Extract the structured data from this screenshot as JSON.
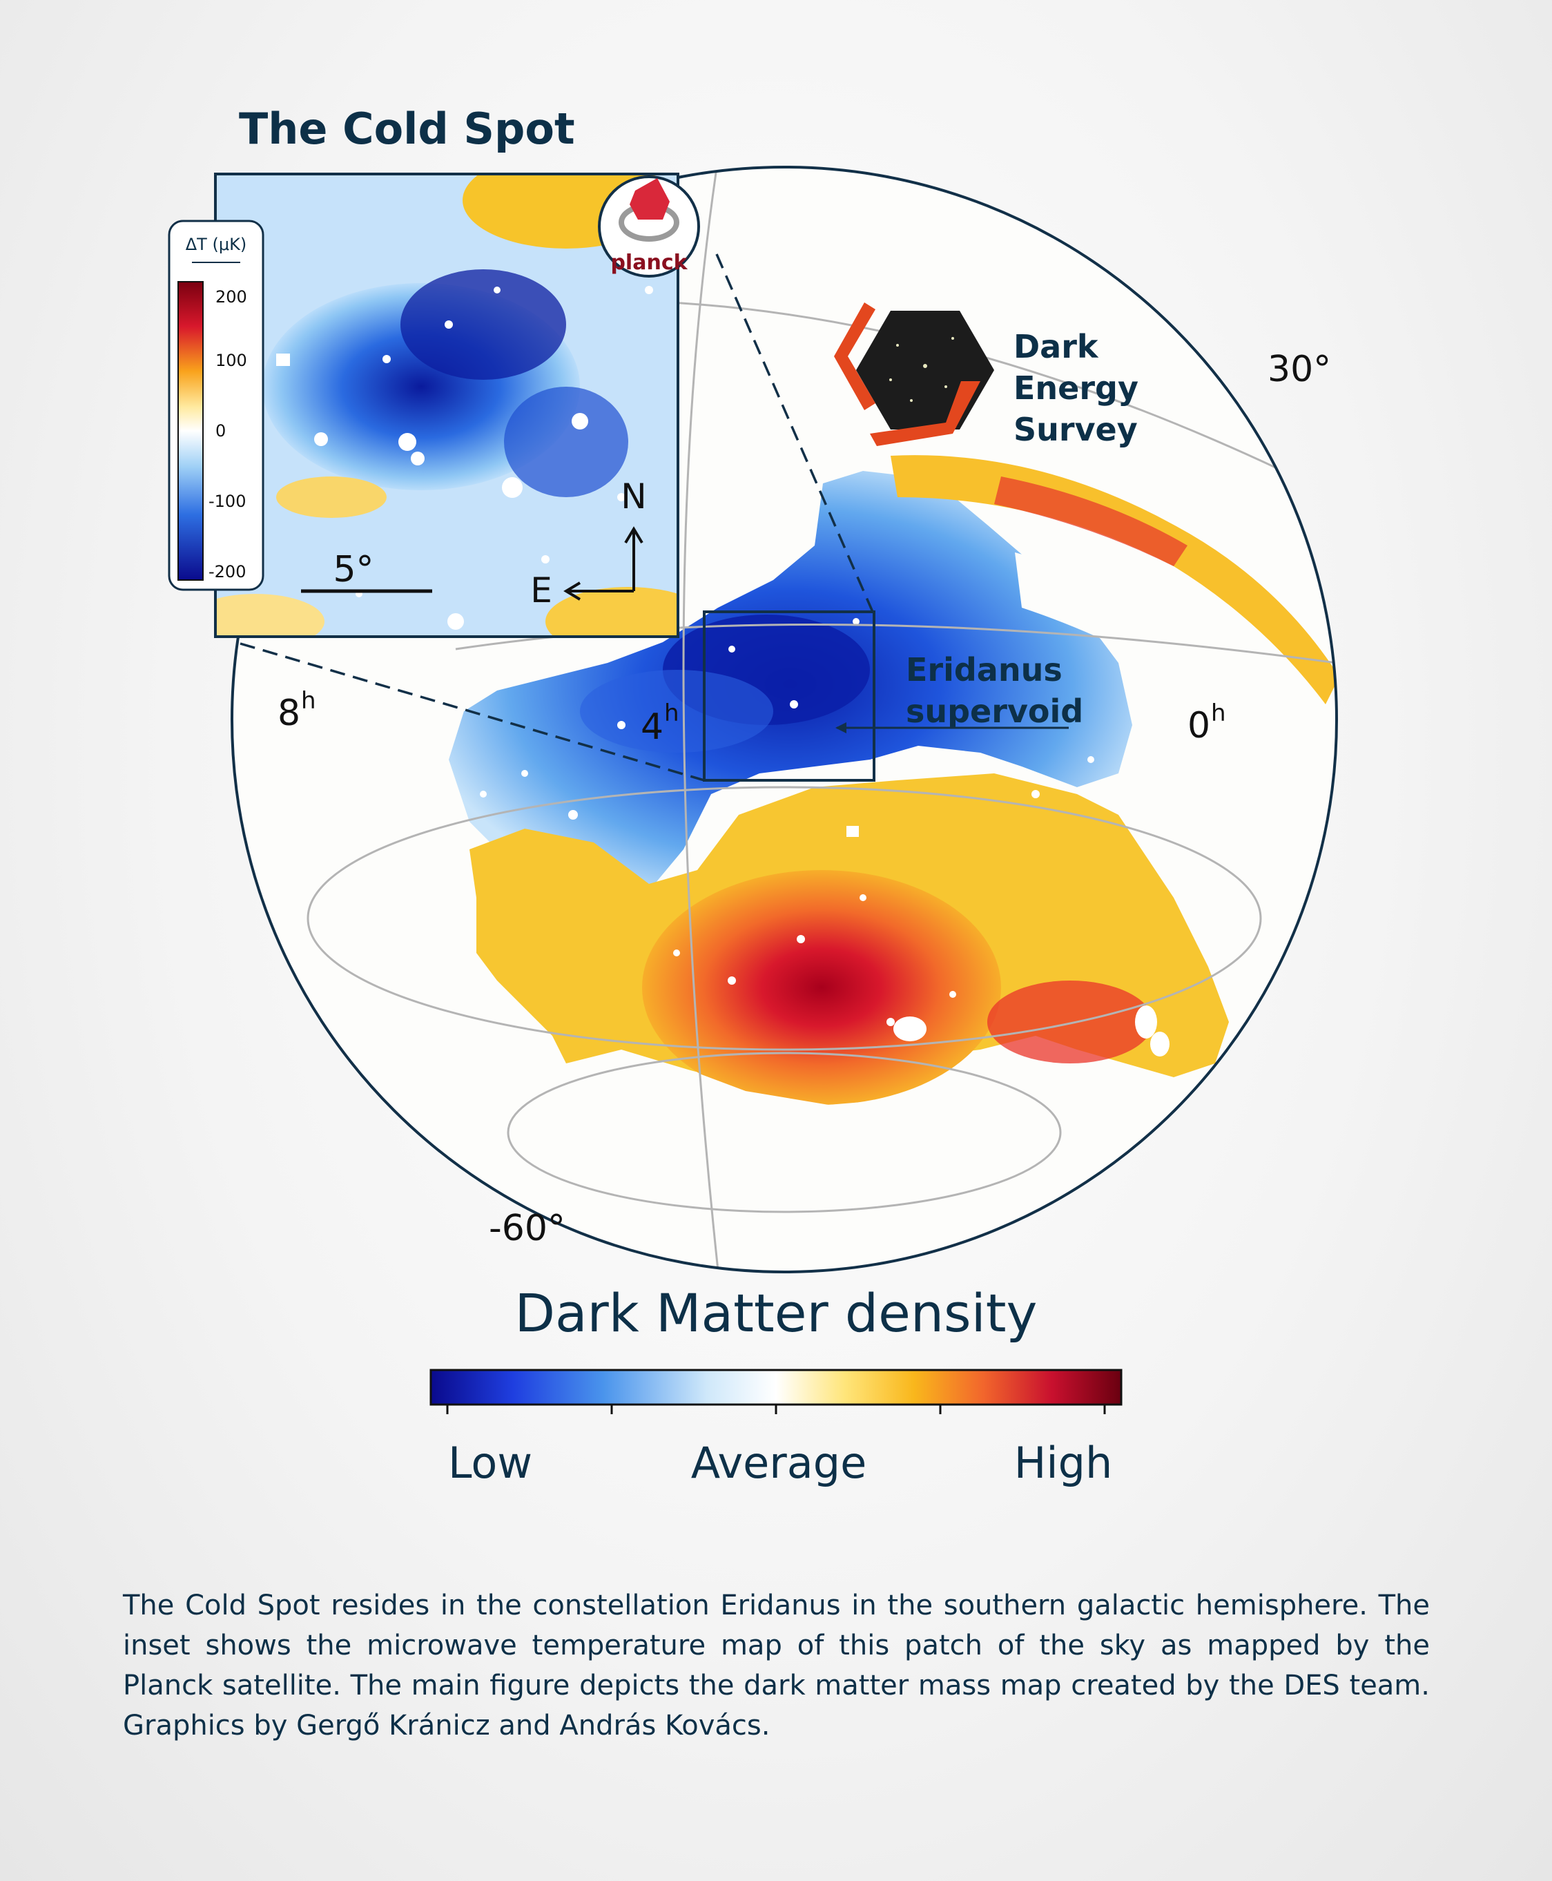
{
  "title": "The Cold Spot",
  "inset": {
    "colorbar_label": "ΔT (μK)",
    "colorbar_ticks": [
      "200",
      "100",
      "0",
      "-100",
      "-200"
    ],
    "scale_label": "5°",
    "compass_north": "N",
    "compass_east": "E"
  },
  "planck_logo_text": "planck",
  "des_logo": {
    "line1": "Dark",
    "line2": "Energy",
    "line3": "Survey"
  },
  "map_labels": {
    "dec_top": "30°",
    "dec_bottom": "-60°",
    "ra_8": "8",
    "ra_4": "4",
    "ra_0": "0",
    "hour_sup": "h",
    "supervoid_line1": "Eridanus",
    "supervoid_line2": "supervoid"
  },
  "colorbar": {
    "title": "Dark Matter density",
    "low": "Low",
    "average": "Average",
    "high": "High",
    "stops": [
      "#0a0a8c",
      "#1f4fe0",
      "#5fa6ef",
      "#d9ecfa",
      "#ffffff",
      "#ffe57a",
      "#f9b71c",
      "#f2662c",
      "#c8102e",
      "#7a0010"
    ]
  },
  "caption": "The Cold Spot resides in the constellation Eridanus in the southern galactic hemisphere. The inset shows the microwave temperature map of this patch of the sky as mapped by the Planck satellite. The main figure depicts the dark matter mass map created by the DES team. Graphics by Gergő Kránicz and András Kovács."
}
